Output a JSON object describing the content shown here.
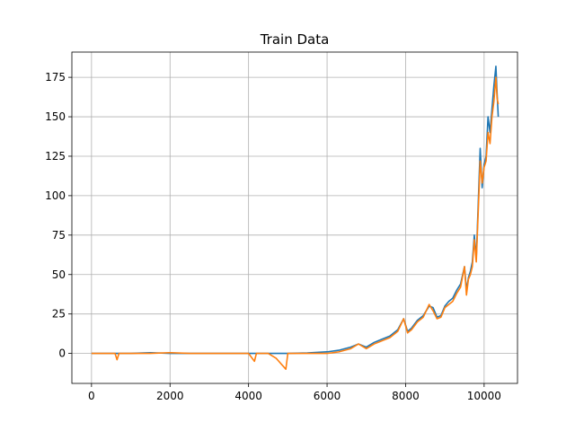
{
  "chart_data": {
    "type": "line",
    "title": "Train Data",
    "xlabel": "",
    "ylabel": "",
    "xlim": [
      -500,
      10850
    ],
    "ylim": [
      -19,
      191
    ],
    "grid": true,
    "legend": "none",
    "x_ticks": [
      0,
      2000,
      4000,
      6000,
      8000,
      10000
    ],
    "x_tick_labels": [
      "0",
      "2000",
      "4000",
      "6000",
      "8000",
      "10000"
    ],
    "y_ticks": [
      0,
      25,
      50,
      75,
      100,
      125,
      150,
      175
    ],
    "y_tick_labels": [
      "0",
      "25",
      "50",
      "75",
      "100",
      "125",
      "150",
      "175"
    ],
    "series": [
      {
        "color": "#1f77b4",
        "x": [
          0,
          500,
          1000,
          1500,
          2000,
          2500,
          3000,
          3500,
          4000,
          4500,
          5000,
          5500,
          6000,
          6300,
          6600,
          6800,
          7000,
          7200,
          7400,
          7600,
          7800,
          7950,
          8050,
          8150,
          8300,
          8450,
          8600,
          8700,
          8800,
          8900,
          9000,
          9100,
          9200,
          9300,
          9400,
          9500,
          9550,
          9600,
          9650,
          9700,
          9750,
          9800,
          9850,
          9900,
          9950,
          10000,
          10050,
          10100,
          10150,
          10200,
          10250,
          10300,
          10330,
          10360
        ],
        "y": [
          0,
          0,
          0,
          0.5,
          0,
          0,
          0,
          0,
          0,
          0,
          0,
          0.3,
          1,
          2,
          4,
          6,
          4,
          7,
          9,
          11,
          15,
          22,
          14,
          16,
          21,
          24,
          30,
          29,
          23,
          24,
          30,
          33,
          35,
          40,
          44,
          55,
          40,
          48,
          52,
          58,
          75,
          60,
          95,
          130,
          105,
          120,
          125,
          150,
          140,
          155,
          170,
          182,
          165,
          150
        ]
      },
      {
        "color": "#ff7f0e",
        "x": [
          0,
          300,
          600,
          650,
          700,
          1000,
          1500,
          2000,
          2500,
          3000,
          3500,
          4000,
          4150,
          4200,
          4500,
          4700,
          4950,
          5000,
          5500,
          5800,
          6000,
          6300,
          6600,
          6800,
          7000,
          7200,
          7400,
          7600,
          7800,
          7950,
          8050,
          8150,
          8300,
          8450,
          8600,
          8700,
          8800,
          8900,
          9000,
          9100,
          9200,
          9300,
          9400,
          9500,
          9550,
          9600,
          9650,
          9700,
          9750,
          9800,
          9850,
          9900,
          9950,
          10000,
          10050,
          10100,
          10150,
          10200,
          10250,
          10300,
          10330,
          10360
        ],
        "y": [
          0,
          0,
          0,
          -4,
          0,
          0,
          0,
          0.5,
          0,
          0,
          0,
          0,
          -5,
          0,
          0,
          -3,
          -10,
          0,
          0,
          0,
          0,
          1,
          3,
          6,
          3,
          6,
          8,
          10,
          14,
          22,
          13,
          15,
          20,
          23,
          31,
          27,
          22,
          23,
          29,
          31,
          33,
          38,
          42,
          55,
          37,
          47,
          50,
          55,
          72,
          58,
          90,
          122,
          108,
          118,
          122,
          140,
          133,
          150,
          160,
          175,
          162,
          158
        ]
      }
    ]
  }
}
